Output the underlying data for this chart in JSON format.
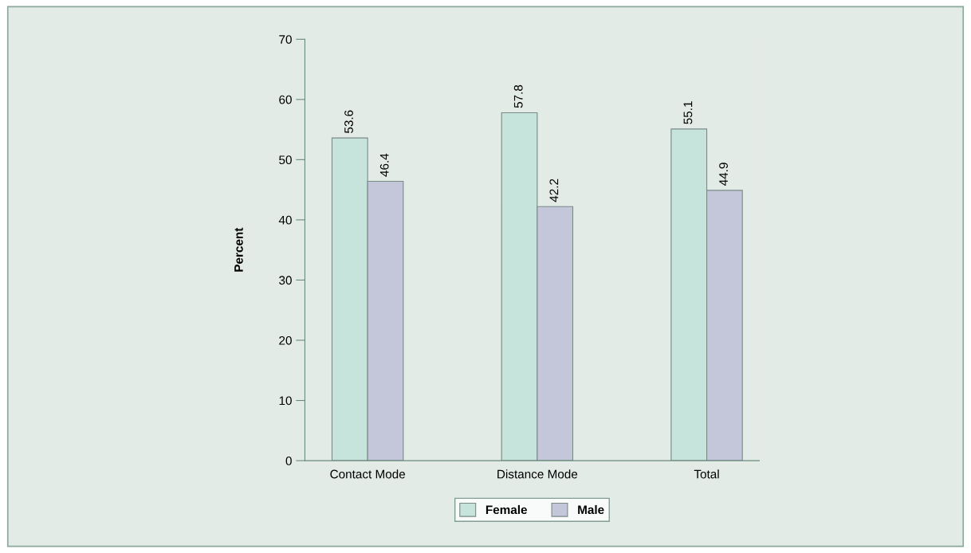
{
  "chart_data": {
    "type": "bar",
    "ylabel": "Percent",
    "categories": [
      "Contact Mode",
      "Distance Mode",
      "Total"
    ],
    "series": [
      {
        "name": "Female",
        "color": "#c6e4dc",
        "values": [
          53.6,
          57.8,
          55.1
        ]
      },
      {
        "name": "Male",
        "color": "#c4c6da",
        "values": [
          46.4,
          42.2,
          44.9
        ]
      }
    ],
    "ylim": [
      0,
      70
    ],
    "yticks": [
      0,
      10,
      20,
      30,
      40,
      50,
      60,
      70
    ],
    "data_labels": true,
    "grid": false,
    "legend": "bottom"
  }
}
